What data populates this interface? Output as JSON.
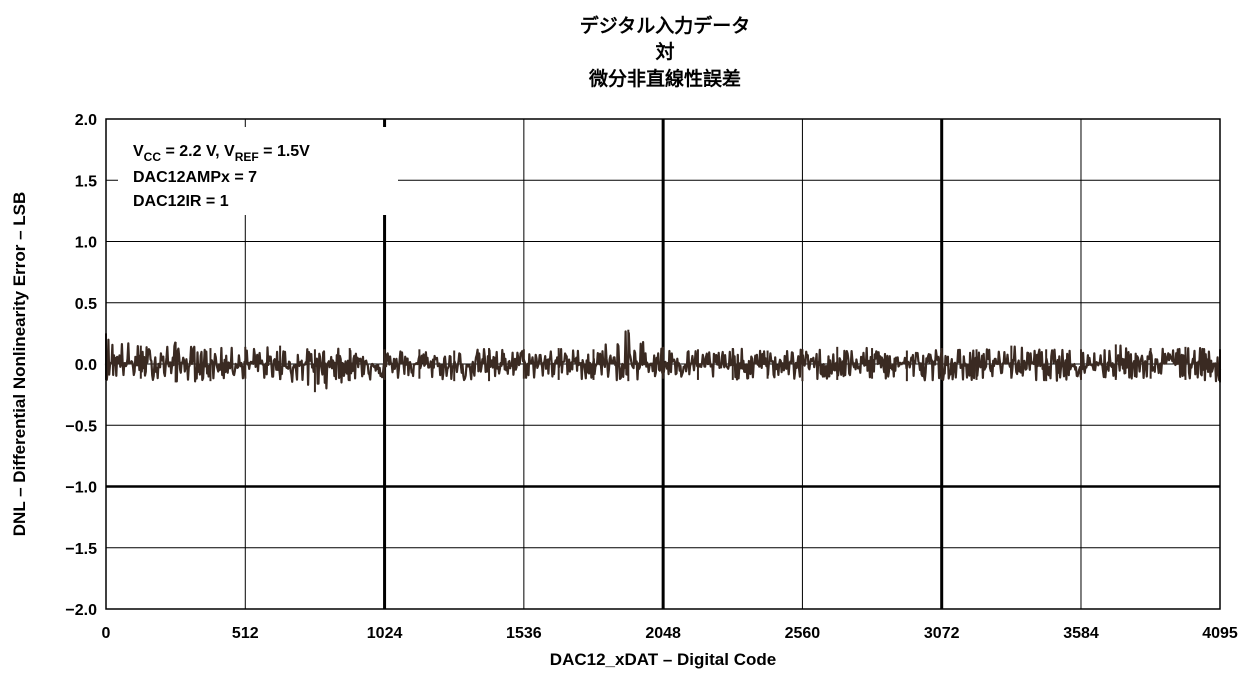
{
  "chart_data": {
    "type": "line",
    "title_lines": [
      "デジタル入力データ",
      "対",
      "微分非直線性誤差"
    ],
    "xlabel": "DAC12_xDAT – Digital Code",
    "ylabel": "DNL – Differential Nonlinearity Error – LSB",
    "xlim": [
      0,
      4095
    ],
    "ylim": [
      -2.0,
      2.0
    ],
    "x_ticks": [
      0,
      512,
      1024,
      1536,
      2048,
      2560,
      3072,
      3584,
      4095
    ],
    "x_tick_labels": [
      "0",
      "512",
      "1024",
      "1536",
      "2048",
      "2560",
      "3072",
      "3584",
      "4095"
    ],
    "y_ticks": [
      2.0,
      1.5,
      1.0,
      0.5,
      0.0,
      -0.5,
      -1.0,
      -1.5,
      -2.0
    ],
    "y_tick_labels": [
      "2.0",
      "1.5",
      "1.0",
      "0.5",
      "0.0",
      "−0.5",
      "−1.0",
      "−1.5",
      "−2.0"
    ],
    "grid": true,
    "annotations": {
      "line1_prefix": "V",
      "line1_sub1": "CC",
      "line1_mid": " = 2.2 V, V",
      "line1_sub2": "REF",
      "line1_suffix": " = 1.5V",
      "line2": "DAC12AMPx = 7",
      "line3": "DAC12IR = 1"
    },
    "series": [
      {
        "color": "#3a2a22",
        "x": [
          0,
          128,
          256,
          384,
          512,
          640,
          768,
          896,
          1024,
          1152,
          1280,
          1408,
          1536,
          1664,
          1792,
          1920,
          2048,
          2176,
          2304,
          2432,
          2560,
          2688,
          2816,
          2944,
          3072,
          3200,
          3328,
          3456,
          3584,
          3712,
          3840,
          3968,
          4095
        ],
        "y": [
          0.02,
          0.0,
          0.01,
          -0.01,
          0.01,
          -0.02,
          0.0,
          0.01,
          -0.01,
          0.0,
          -0.02,
          0.01,
          0.0,
          0.02,
          0.0,
          -0.01,
          0.01,
          0.0,
          -0.01,
          0.0,
          0.01,
          -0.01,
          0.0,
          0.01,
          0.0,
          -0.01,
          0.01,
          0.0,
          -0.01,
          0.01,
          0.0,
          0.02,
          0.0
        ],
        "y_max": [
          0.25,
          0.15,
          0.18,
          0.13,
          0.14,
          0.15,
          0.12,
          0.13,
          0.12,
          0.12,
          0.11,
          0.13,
          0.12,
          0.13,
          0.12,
          0.28,
          0.14,
          0.12,
          0.13,
          0.11,
          0.12,
          0.14,
          0.13,
          0.11,
          0.13,
          0.12,
          0.15,
          0.12,
          0.12,
          0.16,
          0.13,
          0.14,
          0.12
        ],
        "y_min": [
          -0.13,
          -0.12,
          -0.15,
          -0.14,
          -0.12,
          -0.13,
          -0.23,
          -0.14,
          -0.13,
          -0.12,
          -0.14,
          -0.14,
          -0.12,
          -0.13,
          -0.13,
          -0.14,
          -0.12,
          -0.13,
          -0.13,
          -0.12,
          -0.14,
          -0.13,
          -0.12,
          -0.14,
          -0.13,
          -0.13,
          -0.12,
          -0.14,
          -0.13,
          -0.13,
          -0.12,
          -0.13,
          -0.15
        ]
      }
    ]
  }
}
